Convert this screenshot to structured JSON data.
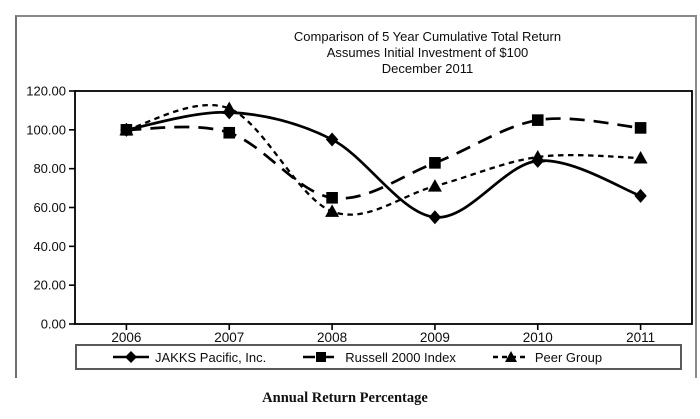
{
  "caption": "Annual Return Percentage",
  "chart_data": {
    "type": "line",
    "title_lines": [
      "Comparison of 5 Year Cumulative Total Return",
      "Assumes Initial Investment of $100",
      "December 2011"
    ],
    "categories": [
      "2006",
      "2007",
      "2008",
      "2009",
      "2010",
      "2011"
    ],
    "series": [
      {
        "name": "JAKKS Pacific, Inc.",
        "marker": "diamond",
        "line_style": "solid",
        "values": [
          100,
          109,
          95,
          55,
          84,
          66
        ]
      },
      {
        "name": "Russell 2000 Index",
        "marker": "square",
        "line_style": "long-dash",
        "values": [
          100,
          98.5,
          65,
          83,
          105,
          101
        ]
      },
      {
        "name": "Peer Group",
        "marker": "triangle",
        "line_style": "short-dash",
        "values": [
          100,
          111,
          58,
          71,
          86,
          85.5
        ]
      }
    ],
    "ylim": [
      0,
      120
    ],
    "yticks": [
      0,
      20,
      40,
      60,
      80,
      100,
      120
    ],
    "ytick_labels": [
      "0.00",
      "20.00",
      "40.00",
      "60.00",
      "80.00",
      "100.00",
      "120.00"
    ],
    "grid": false,
    "legend_position": "bottom",
    "line_color": "#000000",
    "curve": "smooth"
  }
}
